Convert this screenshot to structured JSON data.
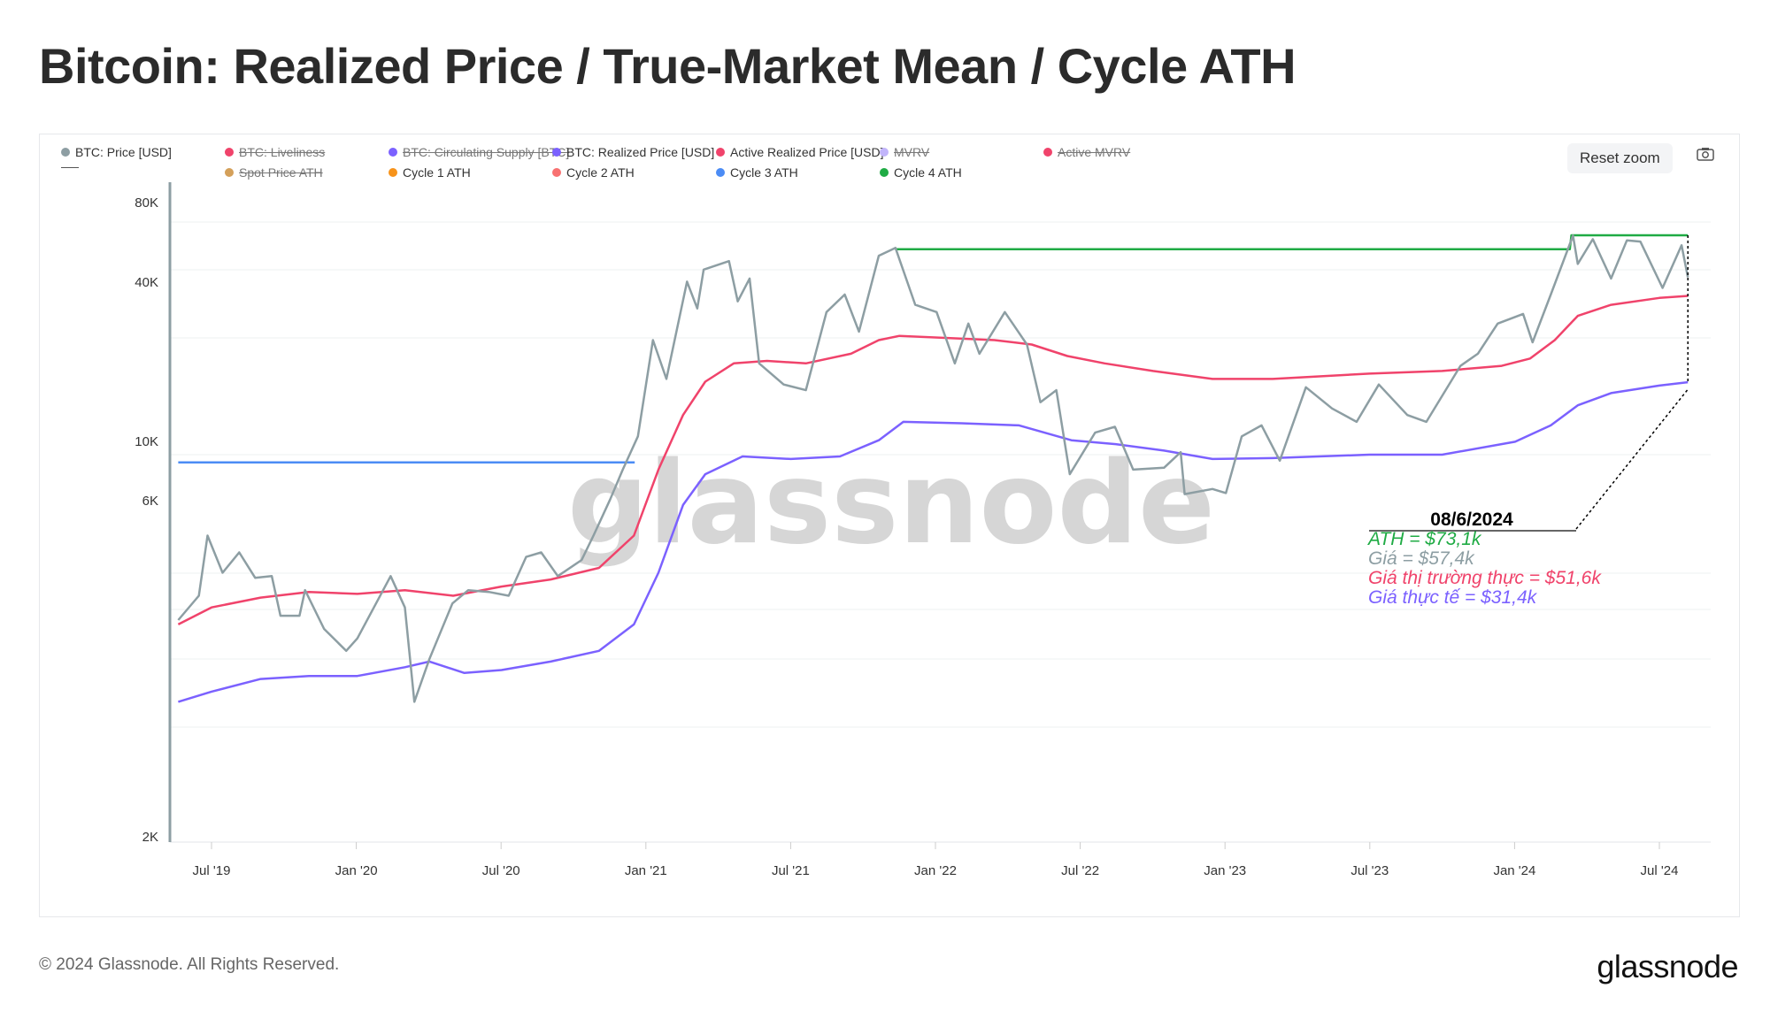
{
  "title": "Bitcoin: Realized Price / True-Market Mean / Cycle ATH",
  "toolbar": {
    "reset_zoom": "Reset zoom",
    "camera_icon": "camera-icon"
  },
  "legend": [
    {
      "label": "BTC: Price [USD]",
      "color": "#8d9ea3",
      "disabled": false
    },
    {
      "label": "BTC: Liveliness",
      "color": "#f0436b",
      "disabled": true
    },
    {
      "label": "BTC: Circulating Supply [BTC]",
      "color": "#7b61ff",
      "disabled": true
    },
    {
      "label": "BTC: Realized Price [USD]",
      "color": "#7b61ff",
      "disabled": false
    },
    {
      "label": "Active Realized Price [USD]",
      "color": "#f0436b",
      "disabled": false
    },
    {
      "label": "MVRV",
      "color": "#c2b5fb",
      "disabled": true
    },
    {
      "label": "Active MVRV",
      "color": "#f0436b",
      "disabled": true
    },
    {
      "label": "",
      "color": "#555555",
      "disabled": false
    },
    {
      "label": "Spot Price ATH",
      "color": "#d4a05a",
      "disabled": true
    },
    {
      "label": "Cycle 1 ATH",
      "color": "#f7931a",
      "disabled": false
    },
    {
      "label": "Cycle 2 ATH",
      "color": "#f87171",
      "disabled": false
    },
    {
      "label": "Cycle 3 ATH",
      "color": "#4b8cf5",
      "disabled": false
    },
    {
      "label": "Cycle 4 ATH",
      "color": "#1fab44",
      "disabled": false
    }
  ],
  "chart_data": {
    "type": "line",
    "title": "Bitcoin: Realized Price / True-Market Mean / Cycle ATH",
    "y_scale": "log",
    "y_tick_labels": [
      "80K",
      "40K",
      "10K",
      "6K",
      "2K"
    ],
    "x_tick_labels": [
      "Jul '19",
      "Jan '20",
      "Jul '20",
      "Jan '21",
      "Jul '21",
      "Jan '22",
      "Jul '22",
      "Jan '23",
      "Jul '23",
      "Jan '24",
      "Jul '24"
    ],
    "x_range": [
      "2019-05-20",
      "2024-08-06"
    ],
    "grid": true,
    "watermark": "glassnode",
    "series": [
      {
        "name": "BTC: Price [USD]",
        "color": "#8d9ea3",
        "points": [
          [
            "2019-05-20",
            8000
          ],
          [
            "2019-06-15",
            9200
          ],
          [
            "2019-06-26",
            13000
          ],
          [
            "2019-07-15",
            10500
          ],
          [
            "2019-08-05",
            11800
          ],
          [
            "2019-08-25",
            10200
          ],
          [
            "2019-09-15",
            10300
          ],
          [
            "2019-09-26",
            8200
          ],
          [
            "2019-10-20",
            8200
          ],
          [
            "2019-10-27",
            9500
          ],
          [
            "2019-11-20",
            7600
          ],
          [
            "2019-12-18",
            6700
          ],
          [
            "2020-01-01",
            7200
          ],
          [
            "2020-02-12",
            10300
          ],
          [
            "2020-03-01",
            8600
          ],
          [
            "2020-03-13",
            5000
          ],
          [
            "2020-04-01",
            6400
          ],
          [
            "2020-04-30",
            8800
          ],
          [
            "2020-05-20",
            9500
          ],
          [
            "2020-06-15",
            9400
          ],
          [
            "2020-07-10",
            9200
          ],
          [
            "2020-08-01",
            11500
          ],
          [
            "2020-08-20",
            11800
          ],
          [
            "2020-09-10",
            10300
          ],
          [
            "2020-10-10",
            11300
          ],
          [
            "2020-10-25",
            13000
          ],
          [
            "2020-11-15",
            16000
          ],
          [
            "2020-12-01",
            19000
          ],
          [
            "2020-12-20",
            23000
          ],
          [
            "2021-01-08",
            40000
          ],
          [
            "2021-01-25",
            32000
          ],
          [
            "2021-02-20",
            56000
          ],
          [
            "2021-03-05",
            48000
          ],
          [
            "2021-03-13",
            60000
          ],
          [
            "2021-04-14",
            63000
          ],
          [
            "2021-04-25",
            50000
          ],
          [
            "2021-05-10",
            57000
          ],
          [
            "2021-05-22",
            35000
          ],
          [
            "2021-06-22",
            31000
          ],
          [
            "2021-07-20",
            30000
          ],
          [
            "2021-08-15",
            47000
          ],
          [
            "2021-09-07",
            52000
          ],
          [
            "2021-09-25",
            42000
          ],
          [
            "2021-10-20",
            65000
          ],
          [
            "2021-11-10",
            68000
          ],
          [
            "2021-12-05",
            49000
          ],
          [
            "2022-01-01",
            47000
          ],
          [
            "2022-01-24",
            35000
          ],
          [
            "2022-02-10",
            44000
          ],
          [
            "2022-02-24",
            37000
          ],
          [
            "2022-03-28",
            47000
          ],
          [
            "2022-04-25",
            39000
          ],
          [
            "2022-05-12",
            28000
          ],
          [
            "2022-06-01",
            30000
          ],
          [
            "2022-06-18",
            18500
          ],
          [
            "2022-07-20",
            23500
          ],
          [
            "2022-08-14",
            24300
          ],
          [
            "2022-09-06",
            19000
          ],
          [
            "2022-10-15",
            19200
          ],
          [
            "2022-11-05",
            21000
          ],
          [
            "2022-11-10",
            16500
          ],
          [
            "2022-12-15",
            17000
          ],
          [
            "2023-01-01",
            16600
          ],
          [
            "2023-01-21",
            23000
          ],
          [
            "2023-02-15",
            24500
          ],
          [
            "2023-03-10",
            20000
          ],
          [
            "2023-04-12",
            30500
          ],
          [
            "2023-05-15",
            27000
          ],
          [
            "2023-06-15",
            25000
          ],
          [
            "2023-07-13",
            31000
          ],
          [
            "2023-08-18",
            26000
          ],
          [
            "2023-09-11",
            25000
          ],
          [
            "2023-10-24",
            34500
          ],
          [
            "2023-11-15",
            37000
          ],
          [
            "2023-12-10",
            44000
          ],
          [
            "2024-01-11",
            46500
          ],
          [
            "2024-01-23",
            39500
          ],
          [
            "2024-02-15",
            52000
          ],
          [
            "2024-03-14",
            73000
          ],
          [
            "2024-03-20",
            62000
          ],
          [
            "2024-04-08",
            71500
          ],
          [
            "2024-05-01",
            57000
          ],
          [
            "2024-05-21",
            71000
          ],
          [
            "2024-06-07",
            70500
          ],
          [
            "2024-07-05",
            54000
          ],
          [
            "2024-07-29",
            69000
          ],
          [
            "2024-08-06",
            57400
          ]
        ]
      },
      {
        "name": "Active Realized Price [USD]",
        "color": "#f0436b",
        "points": [
          [
            "2019-05-20",
            7800
          ],
          [
            "2019-07-01",
            8600
          ],
          [
            "2019-09-01",
            9100
          ],
          [
            "2019-11-01",
            9400
          ],
          [
            "2020-01-01",
            9300
          ],
          [
            "2020-03-01",
            9500
          ],
          [
            "2020-05-01",
            9200
          ],
          [
            "2020-07-01",
            9700
          ],
          [
            "2020-09-01",
            10100
          ],
          [
            "2020-11-01",
            10800
          ],
          [
            "2020-12-15",
            13000
          ],
          [
            "2021-01-15",
            19000
          ],
          [
            "2021-02-15",
            26000
          ],
          [
            "2021-03-15",
            31500
          ],
          [
            "2021-04-20",
            35000
          ],
          [
            "2021-06-01",
            35500
          ],
          [
            "2021-07-20",
            35000
          ],
          [
            "2021-09-15",
            37000
          ],
          [
            "2021-10-20",
            40000
          ],
          [
            "2021-11-15",
            41000
          ],
          [
            "2022-01-15",
            40500
          ],
          [
            "2022-03-15",
            40000
          ],
          [
            "2022-05-01",
            39000
          ],
          [
            "2022-06-15",
            36500
          ],
          [
            "2022-08-01",
            35000
          ],
          [
            "2022-10-01",
            33500
          ],
          [
            "2022-12-15",
            32000
          ],
          [
            "2023-03-01",
            32000
          ],
          [
            "2023-07-01",
            33000
          ],
          [
            "2023-10-01",
            33500
          ],
          [
            "2023-12-15",
            34500
          ],
          [
            "2024-01-20",
            36000
          ],
          [
            "2024-02-20",
            40000
          ],
          [
            "2024-03-20",
            46000
          ],
          [
            "2024-05-01",
            49000
          ],
          [
            "2024-07-01",
            51000
          ],
          [
            "2024-08-06",
            51600
          ]
        ]
      },
      {
        "name": "BTC: Realized Price [USD]",
        "color": "#7b61ff",
        "points": [
          [
            "2019-05-20",
            5000
          ],
          [
            "2019-07-01",
            5300
          ],
          [
            "2019-09-01",
            5700
          ],
          [
            "2019-11-01",
            5800
          ],
          [
            "2020-01-01",
            5800
          ],
          [
            "2020-03-01",
            6100
          ],
          [
            "2020-04-01",
            6300
          ],
          [
            "2020-05-15",
            5900
          ],
          [
            "2020-07-01",
            6000
          ],
          [
            "2020-09-01",
            6300
          ],
          [
            "2020-11-01",
            6700
          ],
          [
            "2020-12-15",
            7800
          ],
          [
            "2021-01-15",
            10500
          ],
          [
            "2021-02-15",
            15500
          ],
          [
            "2021-03-15",
            18500
          ],
          [
            "2021-05-01",
            20500
          ],
          [
            "2021-07-01",
            20200
          ],
          [
            "2021-09-01",
            20500
          ],
          [
            "2021-10-20",
            22500
          ],
          [
            "2021-11-20",
            25000
          ],
          [
            "2022-02-01",
            24800
          ],
          [
            "2022-04-15",
            24500
          ],
          [
            "2022-06-20",
            22500
          ],
          [
            "2022-08-15",
            22000
          ],
          [
            "2022-10-15",
            21200
          ],
          [
            "2022-12-15",
            20200
          ],
          [
            "2023-03-01",
            20300
          ],
          [
            "2023-07-01",
            20700
          ],
          [
            "2023-10-01",
            20700
          ],
          [
            "2024-01-01",
            22300
          ],
          [
            "2024-02-15",
            24500
          ],
          [
            "2024-03-20",
            27500
          ],
          [
            "2024-05-01",
            29500
          ],
          [
            "2024-07-01",
            30800
          ],
          [
            "2024-08-06",
            31400
          ]
        ]
      },
      {
        "name": "Cycle 3 ATH",
        "color": "#4b8cf5",
        "points": [
          [
            "2019-05-20",
            19800
          ],
          [
            "2020-12-16",
            19800
          ]
        ]
      },
      {
        "name": "Cycle 4 ATH",
        "color": "#1fab44",
        "points": [
          [
            "2021-11-10",
            67500
          ],
          [
            "2024-03-10",
            67500
          ],
          [
            "2024-03-12",
            73100
          ],
          [
            "2024-08-06",
            73100
          ]
        ]
      }
    ]
  },
  "annotation": {
    "date": "08/6/2024",
    "lines": [
      {
        "text": "ATH = $73,1k",
        "color": "#1fab44"
      },
      {
        "text": "Giá = $57,4k",
        "color": "#8d9ea3"
      },
      {
        "text": "Giá thị trường thực = $51,6k",
        "color": "#f0436b"
      },
      {
        "text": "Giá thực tế = $31,4k",
        "color": "#7b61ff"
      }
    ]
  },
  "footer": {
    "copyright": "© 2024 Glassnode. All Rights Reserved.",
    "logo": "glassnode"
  }
}
